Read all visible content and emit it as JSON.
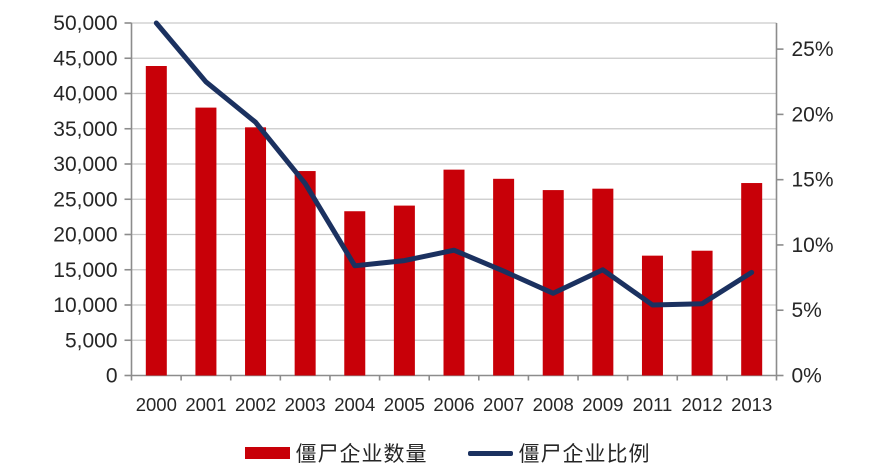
{
  "chart_data": {
    "type": "bar",
    "subtype": "bar-line-combo",
    "title": "",
    "categories": [
      "2000",
      "2001",
      "2002",
      "2003",
      "2004",
      "2005",
      "2006",
      "2007",
      "2008",
      "2009",
      "2011",
      "2012",
      "2013"
    ],
    "series": [
      {
        "name": "僵尸企业数量",
        "type": "bar",
        "axis": "left",
        "values": [
          43900,
          38000,
          35200,
          29000,
          23300,
          24100,
          29200,
          27900,
          26300,
          26500,
          17000,
          17700,
          27300
        ]
      },
      {
        "name": "僵尸企业比例",
        "type": "line",
        "axis": "right",
        "unit": "%",
        "values": [
          27.0,
          22.5,
          19.4,
          14.7,
          8.4,
          8.8,
          9.6,
          8.0,
          6.3,
          8.1,
          5.4,
          5.5,
          7.9
        ]
      }
    ],
    "left_axis": {
      "min": 0,
      "max": 50000,
      "tick_values": [
        0,
        5000,
        10000,
        15000,
        20000,
        25000,
        30000,
        35000,
        40000,
        45000,
        50000
      ],
      "tick_labels": [
        "0",
        "5,000",
        "10,000",
        "15,000",
        "20,000",
        "25,000",
        "30,000",
        "35,000",
        "40,000",
        "45,000",
        "50,000"
      ]
    },
    "right_axis": {
      "min": 0,
      "max": 27,
      "tick_values": [
        0,
        5,
        10,
        15,
        20,
        25
      ],
      "tick_labels": [
        "0%",
        "5%",
        "10%",
        "15%",
        "20%",
        "25%"
      ]
    },
    "grid": true,
    "legend_position": "bottom"
  },
  "colors": {
    "bar": "#C80008",
    "line": "#1B3160",
    "grid": "#C9C9C9",
    "axis": "#8C8C8C",
    "text": "#262626"
  }
}
